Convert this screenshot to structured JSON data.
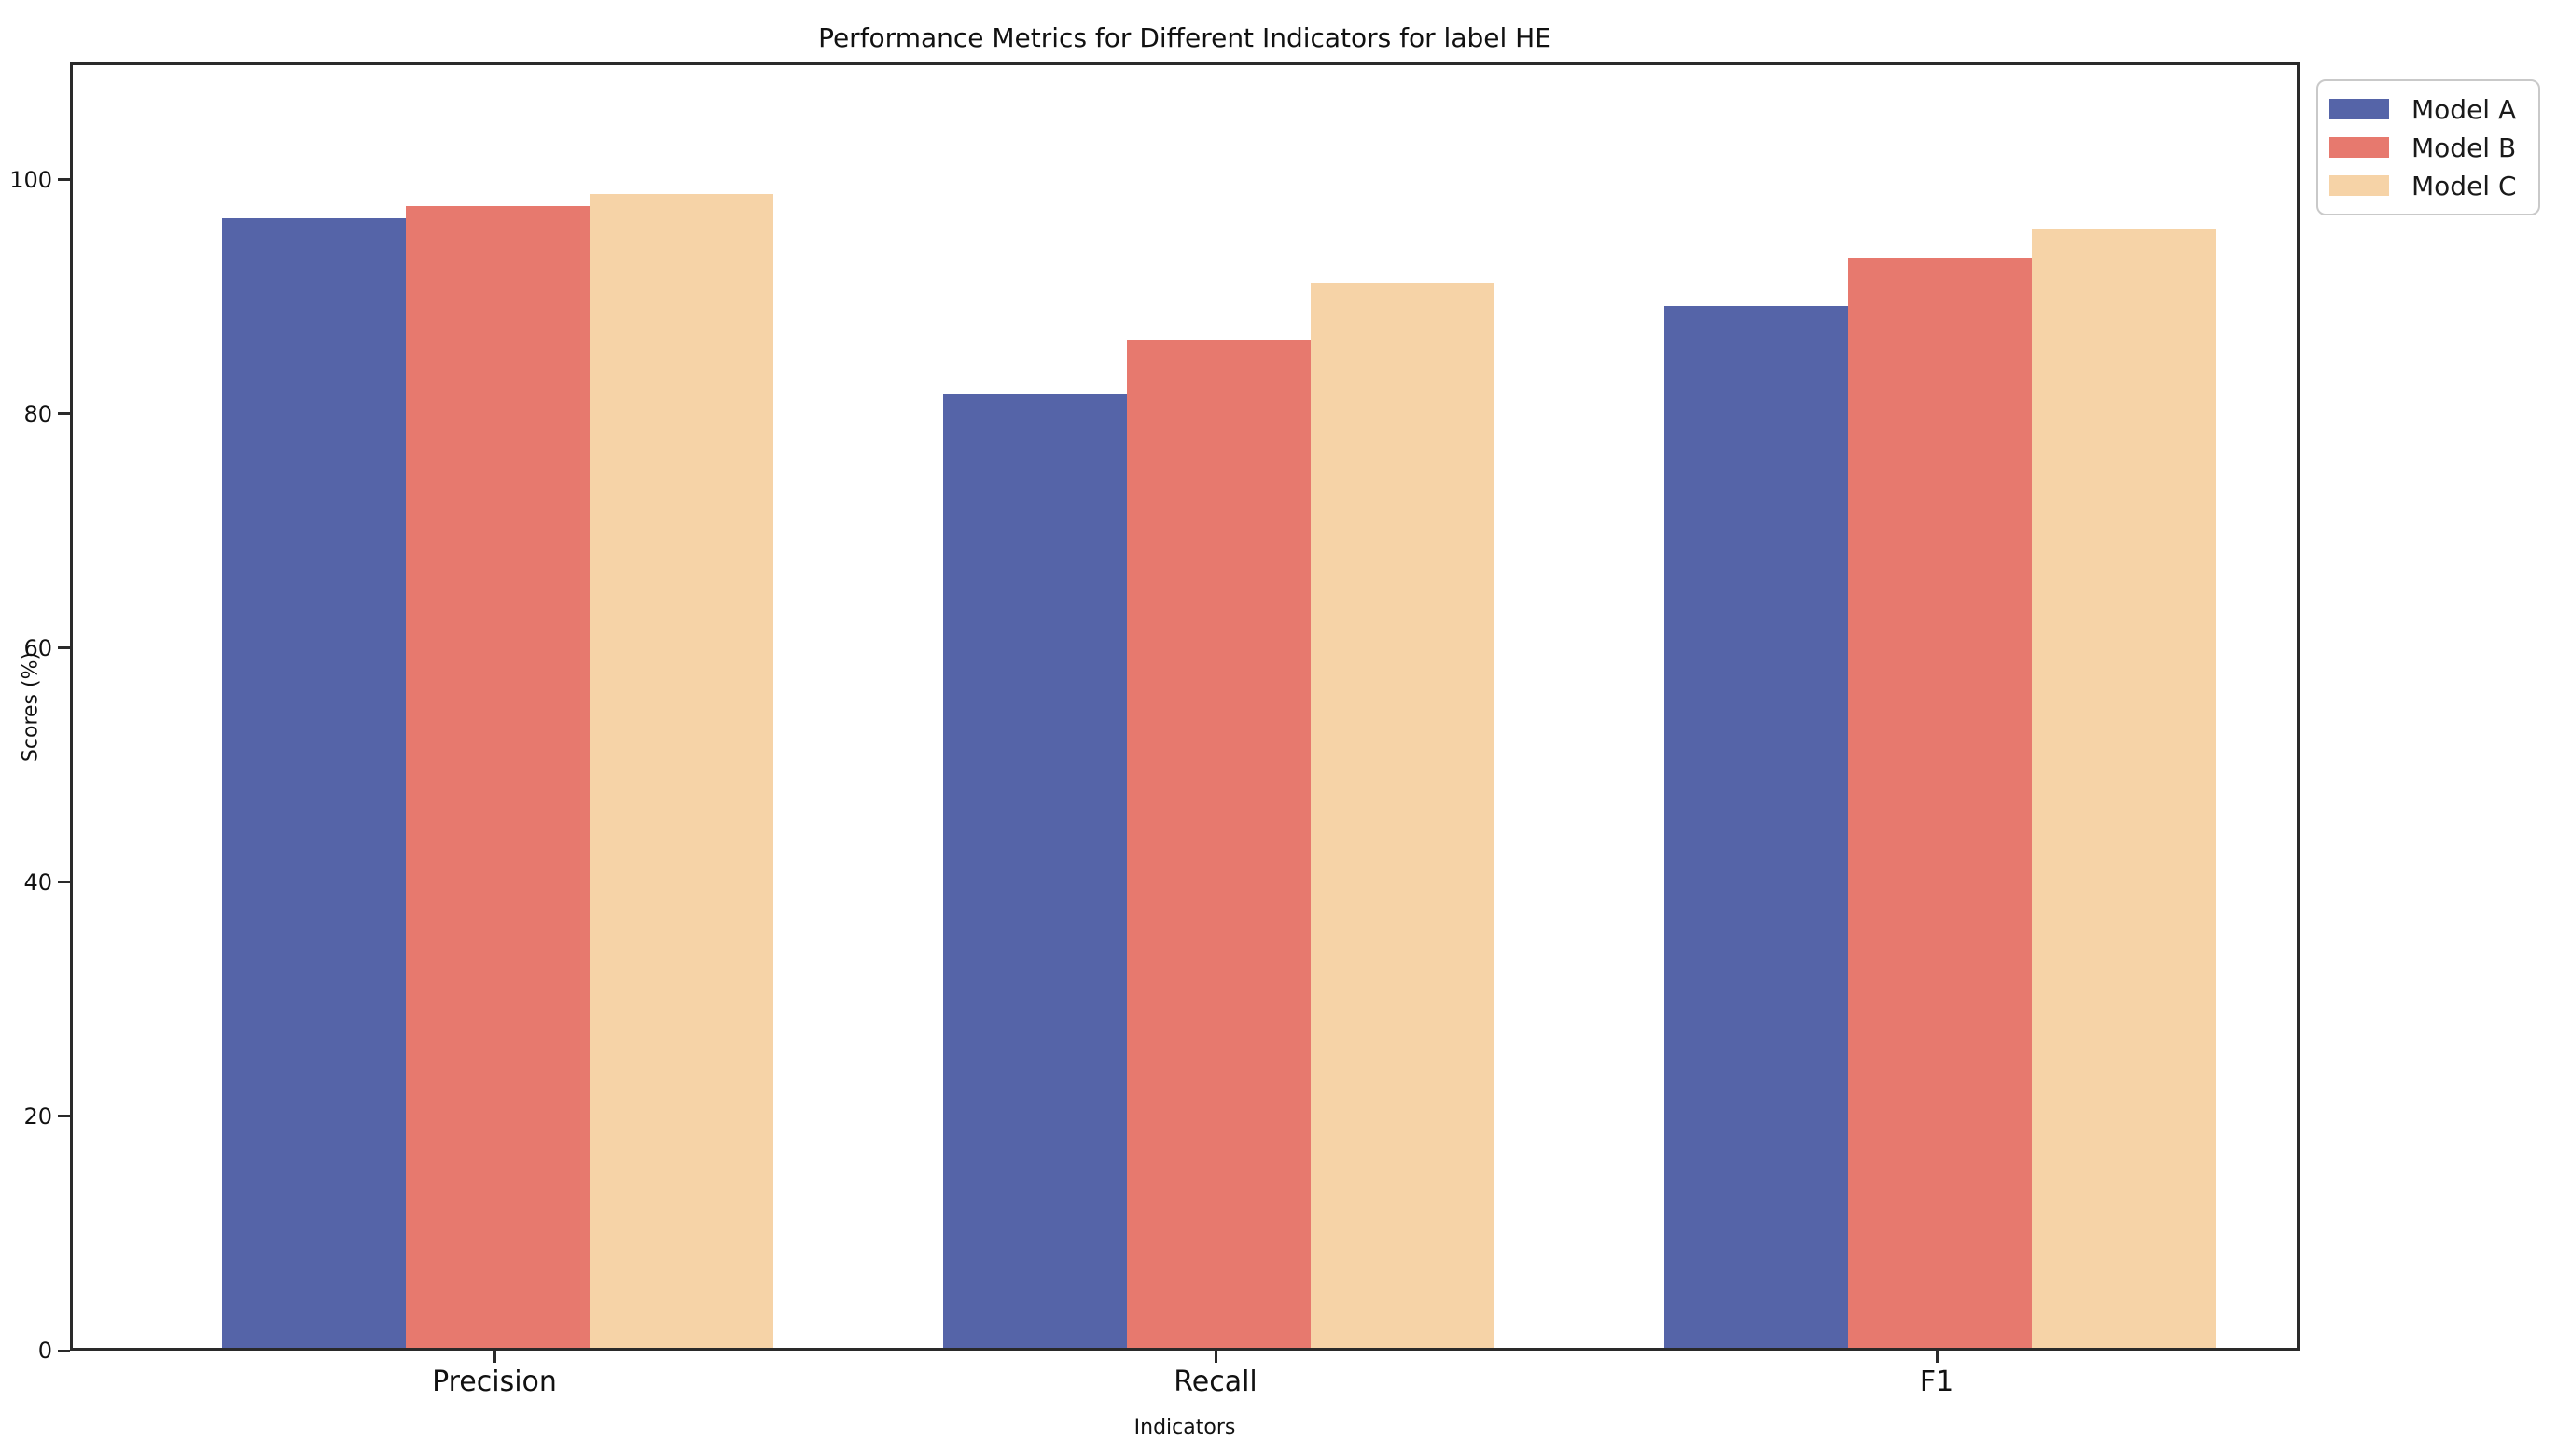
{
  "title": "Performance Metrics for Different Indicators for label HE",
  "axes": {
    "xlabel": "Indicators",
    "ylabel": "Scores (%)",
    "ytick_labels": [
      "0",
      "20",
      "40",
      "60",
      "80",
      "100"
    ]
  },
  "legend": {
    "items": [
      {
        "label": "Model A",
        "color": "#5564a8"
      },
      {
        "label": "Model B",
        "color": "#e7796e"
      },
      {
        "label": "Model C",
        "color": "#f6d3a7"
      }
    ]
  },
  "chart_data": {
    "type": "bar",
    "title": "Performance Metrics for Different Indicators for label HE",
    "xlabel": "Indicators",
    "ylabel": "Scores (%)",
    "categories": [
      "Precision",
      "Recall",
      "F1"
    ],
    "series": [
      {
        "name": "Model A",
        "color": "#5564a8",
        "values": [
          96.5,
          81.5,
          89.0
        ]
      },
      {
        "name": "Model B",
        "color": "#e7796e",
        "values": [
          97.5,
          86.0,
          93.0
        ]
      },
      {
        "name": "Model C",
        "color": "#f6d3a7",
        "values": [
          98.5,
          91.0,
          95.5
        ]
      }
    ],
    "ylim": [
      0,
      110
    ],
    "yticks": [
      0,
      20,
      40,
      60,
      80,
      100
    ],
    "grid": false,
    "legend_position": "upper-right-outside"
  }
}
